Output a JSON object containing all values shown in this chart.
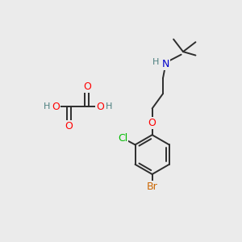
{
  "bg_color": "#ebebeb",
  "bond_color": "#2d2d2d",
  "bond_width": 1.4,
  "colors": {
    "O": "#ff0000",
    "N": "#0000cc",
    "Cl": "#00bb00",
    "Br": "#cc6600",
    "H": "#4d8080",
    "C": "#2d2d2d"
  },
  "font_size": 9.0
}
